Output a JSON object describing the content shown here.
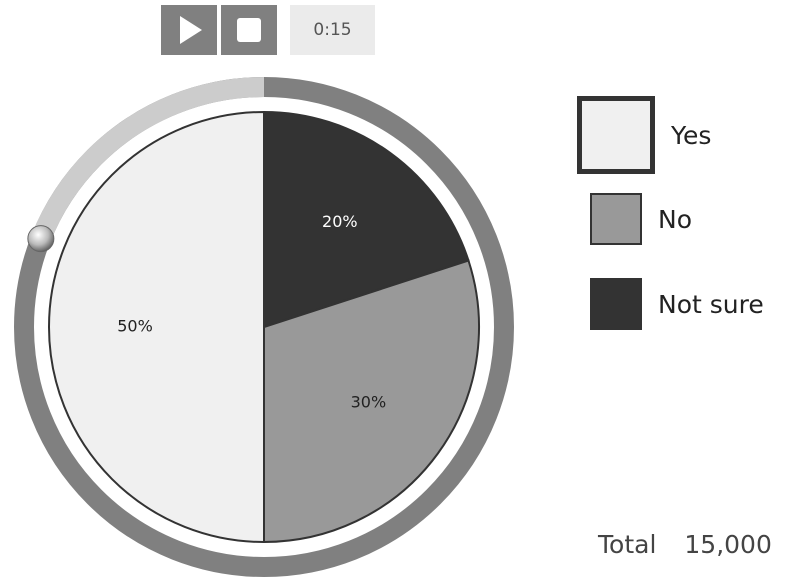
{
  "controls": {
    "play_icon": "play-icon",
    "stop_icon": "stop-icon",
    "time": "0:15"
  },
  "playback": {
    "progress_percent": 81
  },
  "colors": {
    "yes": "#f0f0f0",
    "no": "#999999",
    "not_sure": "#333333",
    "ring": "#808080",
    "ring_progress": "#cccccc",
    "button": "#808080"
  },
  "legend": [
    {
      "label": "Yes",
      "selected": true
    },
    {
      "label": "No",
      "selected": false
    },
    {
      "label": "Not sure",
      "selected": false
    }
  ],
  "total": {
    "label": "Total",
    "value": "15,000"
  },
  "chart_data": {
    "type": "pie",
    "categories": [
      "Yes",
      "No",
      "Not sure"
    ],
    "values": [
      50,
      30,
      20
    ],
    "labels": [
      "50%",
      "30%",
      "20%"
    ],
    "title": "",
    "legend_position": "right"
  }
}
